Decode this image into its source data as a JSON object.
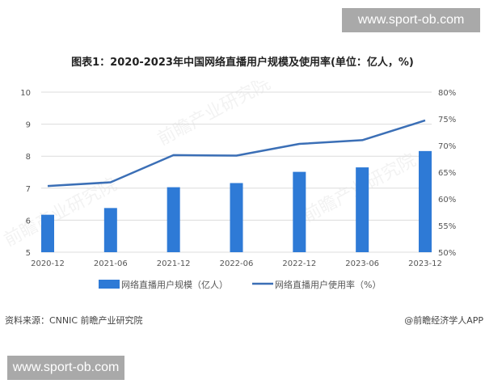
{
  "watermarks": {
    "top": "www.sport-ob.com",
    "bottom": "www.sport-ob.com",
    "background": "前瞻产业研究院"
  },
  "title": "图表1：2020-2023年中国网络直播用户规模及使用率(单位：亿人，%)",
  "footer": {
    "source": "资料来源：CNNIC 前瞻产业研究院",
    "credit": "@前瞻经济学人APP"
  },
  "legend": {
    "bar_label": "网络直播用户规模（亿人）",
    "line_label": "网络直播用户使用率（%）"
  },
  "axes": {
    "left_ticks": [
      "10",
      "9",
      "8",
      "7",
      "6",
      "5"
    ],
    "right_ticks": [
      "80%",
      "75%",
      "70%",
      "65%",
      "60%",
      "55%",
      "50%"
    ],
    "x_ticks": [
      "2020-12",
      "2021-06",
      "2021-12",
      "2022-06",
      "2022-12",
      "2023-06",
      "2023-12"
    ]
  },
  "colors": {
    "bar": "#2e7ad6",
    "line": "#3b6fb6",
    "grid": "#dcdcdc"
  },
  "chart_data": {
    "type": "bar",
    "title": "图表1：2020-2023年中国网络直播用户规模及使用率(单位：亿人，%)",
    "categories": [
      "2020-12",
      "2021-06",
      "2021-12",
      "2022-06",
      "2022-12",
      "2023-06",
      "2023-12"
    ],
    "series": [
      {
        "name": "网络直播用户规模（亿人）",
        "type": "bar",
        "axis": "left",
        "values": [
          6.17,
          6.38,
          7.03,
          7.16,
          7.51,
          7.65,
          8.16
        ]
      },
      {
        "name": "网络直播用户使用率（%）",
        "type": "line",
        "axis": "right",
        "values": [
          62.4,
          63.1,
          68.2,
          68.1,
          70.3,
          71.0,
          74.7
        ]
      }
    ],
    "xlabel": "",
    "ylabel": "亿人",
    "y2label": "%",
    "ylim": [
      5,
      10
    ],
    "y2lim": [
      50,
      80
    ],
    "grid": true,
    "legend_position": "bottom"
  }
}
